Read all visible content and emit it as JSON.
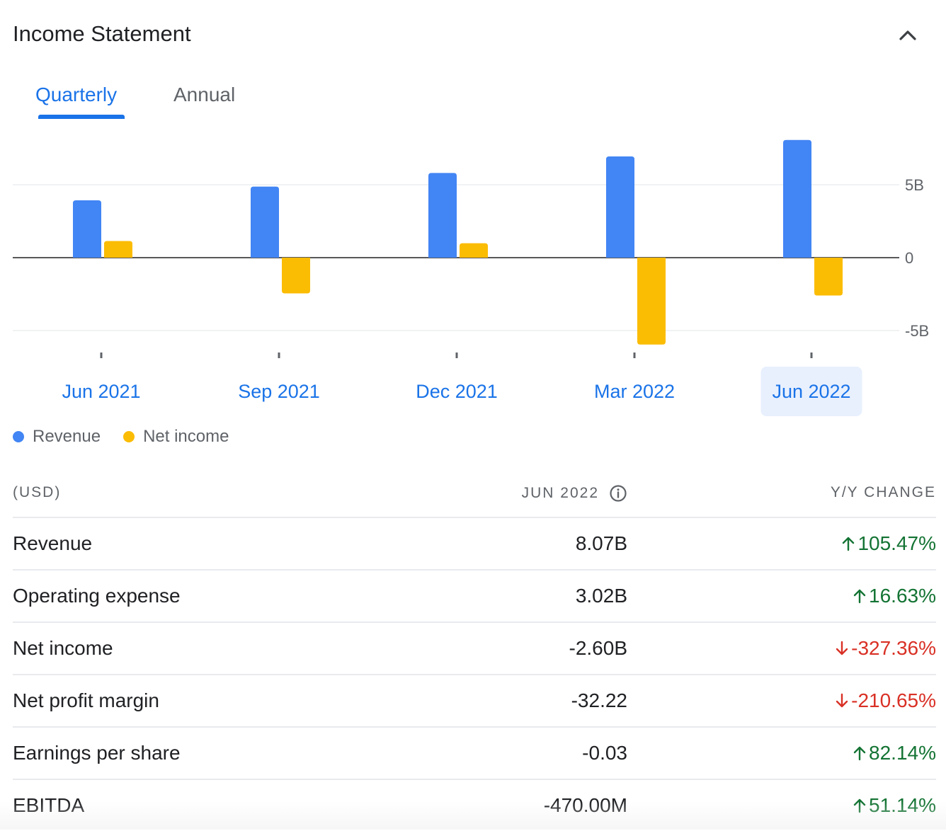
{
  "header": {
    "title": "Income Statement",
    "collapse_icon": "chevron-up-icon"
  },
  "tabs": [
    {
      "label": "Quarterly",
      "active": true
    },
    {
      "label": "Annual",
      "active": false
    }
  ],
  "chart_data": {
    "type": "bar",
    "categories": [
      "Jun 2021",
      "Sep 2021",
      "Dec 2021",
      "Mar 2022",
      "Jun 2022"
    ],
    "selected_category": "Jun 2022",
    "series": [
      {
        "name": "Revenue",
        "color": "#4285f4",
        "values": [
          3.93,
          4.87,
          5.81,
          6.94,
          8.07
        ]
      },
      {
        "name": "Net income",
        "color": "#fbbc04",
        "values": [
          1.14,
          -2.45,
          0.99,
          -5.96,
          -2.6
        ]
      }
    ],
    "y_ticks": [
      {
        "value": 5,
        "label": "5B"
      },
      {
        "value": 0,
        "label": "0"
      },
      {
        "value": -5,
        "label": "-5B"
      }
    ],
    "ylim": [
      -6.5,
      8.3
    ],
    "y_unit": "B",
    "grid": true,
    "legend_placement": "bottom-left"
  },
  "table": {
    "headers": {
      "unit": "(USD)",
      "period": "JUN 2022",
      "change": "Y/Y CHANGE"
    },
    "rows": [
      {
        "label": "Revenue",
        "value": "8.07B",
        "change": "105.47%",
        "direction": "up"
      },
      {
        "label": "Operating expense",
        "value": "3.02B",
        "change": "16.63%",
        "direction": "up"
      },
      {
        "label": "Net income",
        "value": "-2.60B",
        "change": "-327.36%",
        "direction": "down"
      },
      {
        "label": "Net profit margin",
        "value": "-32.22",
        "change": "-210.65%",
        "direction": "down"
      },
      {
        "label": "Earnings per share",
        "value": "-0.03",
        "change": "82.14%",
        "direction": "up"
      },
      {
        "label": "EBITDA",
        "value": "-470.00M",
        "change": "51.14%",
        "direction": "up"
      }
    ]
  },
  "colors": {
    "accent": "#1a73e8",
    "positive": "#137333",
    "negative": "#d93025"
  }
}
